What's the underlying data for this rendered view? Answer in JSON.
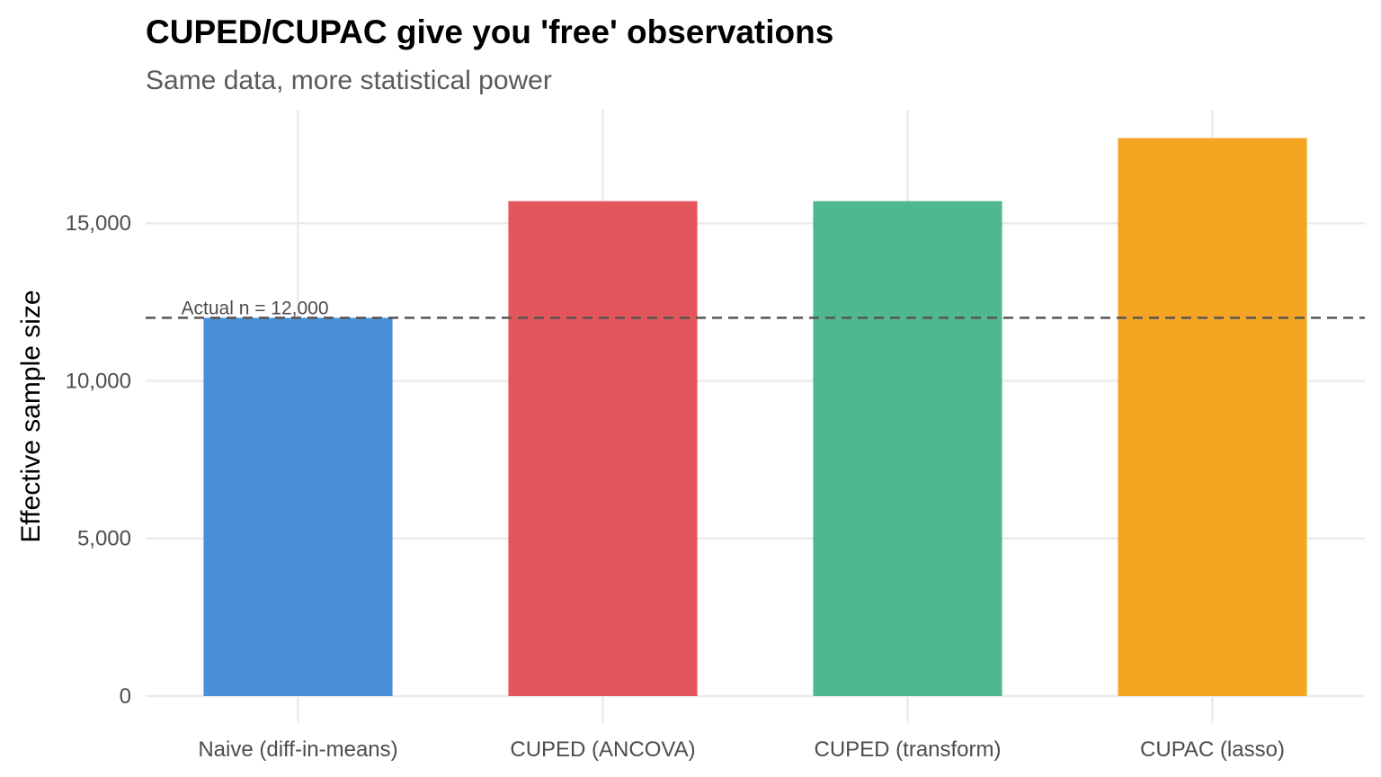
{
  "chart_data": {
    "type": "bar",
    "title": "CUPED/CUPAC give you 'free' observations",
    "subtitle": "Same data, more statistical power",
    "xlabel": "",
    "ylabel": "Effective sample size",
    "categories": [
      "Naive (diff-in-means)",
      "CUPED (ANCOVA)",
      "CUPED (transform)",
      "CUPAC (lasso)"
    ],
    "values": [
      12000,
      15700,
      15700,
      17700
    ],
    "colors": [
      "#4A90D9",
      "#E5565C",
      "#50B88E",
      "#F4A623"
    ],
    "ylim": [
      0,
      18600
    ],
    "yticks": [
      0,
      5000,
      10000,
      15000
    ],
    "ytick_labels": [
      "0",
      "5,000",
      "10,000",
      "15,000"
    ],
    "grid": true,
    "legend": "none",
    "reference_line": {
      "value": 12000,
      "style": "dashed",
      "color": "#555555",
      "label": "Actual n = 12,000"
    }
  }
}
